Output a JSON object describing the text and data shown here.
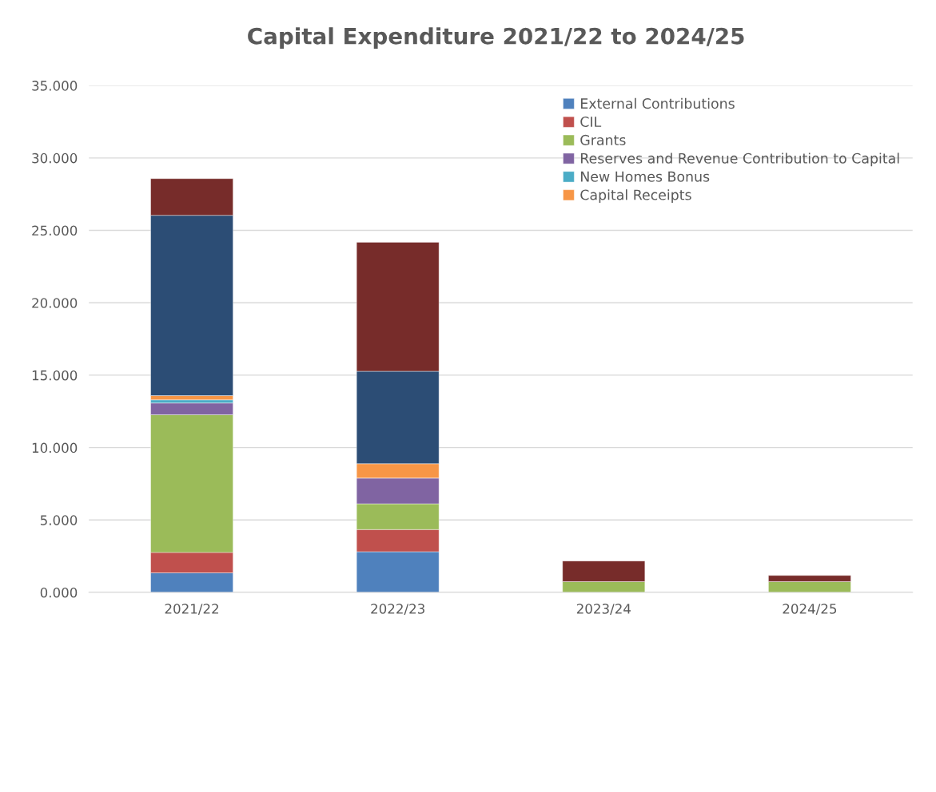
{
  "chart_data": {
    "type": "bar",
    "title": "Capital Expenditure 2021/22 to 2024/25",
    "stacked": true,
    "categories": [
      "2021/22",
      "2022/23",
      "2023/24",
      "2024/25"
    ],
    "series": [
      {
        "name": "External Contributions",
        "color": "#4f81bd",
        "values": [
          1.35,
          2.81,
          0,
          0
        ]
      },
      {
        "name": "CIL",
        "color": "#c0504d",
        "values": [
          1.41,
          1.53,
          0,
          0
        ]
      },
      {
        "name": "Grants",
        "color": "#9bbb59",
        "values": [
          9.51,
          1.78,
          0.75,
          0.75
        ]
      },
      {
        "name": "Reserves and Revenue Contribution to Capital",
        "color": "#8064a2",
        "values": [
          0.81,
          1.78,
          0,
          0
        ]
      },
      {
        "name": "New Homes Bonus",
        "color": "#4bacc6",
        "values": [
          0.22,
          0,
          0,
          0
        ]
      },
      {
        "name": "Capital Receipts",
        "color": "#f79646",
        "values": [
          0.29,
          0.99,
          0,
          0
        ]
      },
      {
        "color": "#2c4d75",
        "values": [
          12.45,
          6.38,
          0,
          0
        ]
      },
      {
        "color": "#772c2a",
        "values": [
          2.53,
          8.91,
          1.42,
          0.42
        ]
      }
    ],
    "ylim": [
      0,
      35
    ],
    "yticks": [
      {
        "value": 0,
        "label": "0.000"
      },
      {
        "value": 5,
        "label": "5.000"
      },
      {
        "value": 10,
        "label": "10.000"
      },
      {
        "value": 15,
        "label": "15.000"
      },
      {
        "value": 20,
        "label": "20.000"
      },
      {
        "value": 25,
        "label": "25.000"
      },
      {
        "value": 30,
        "label": "30.000"
      },
      {
        "value": 35,
        "label": "35.000"
      }
    ],
    "grid": "y",
    "legend": "top right"
  }
}
